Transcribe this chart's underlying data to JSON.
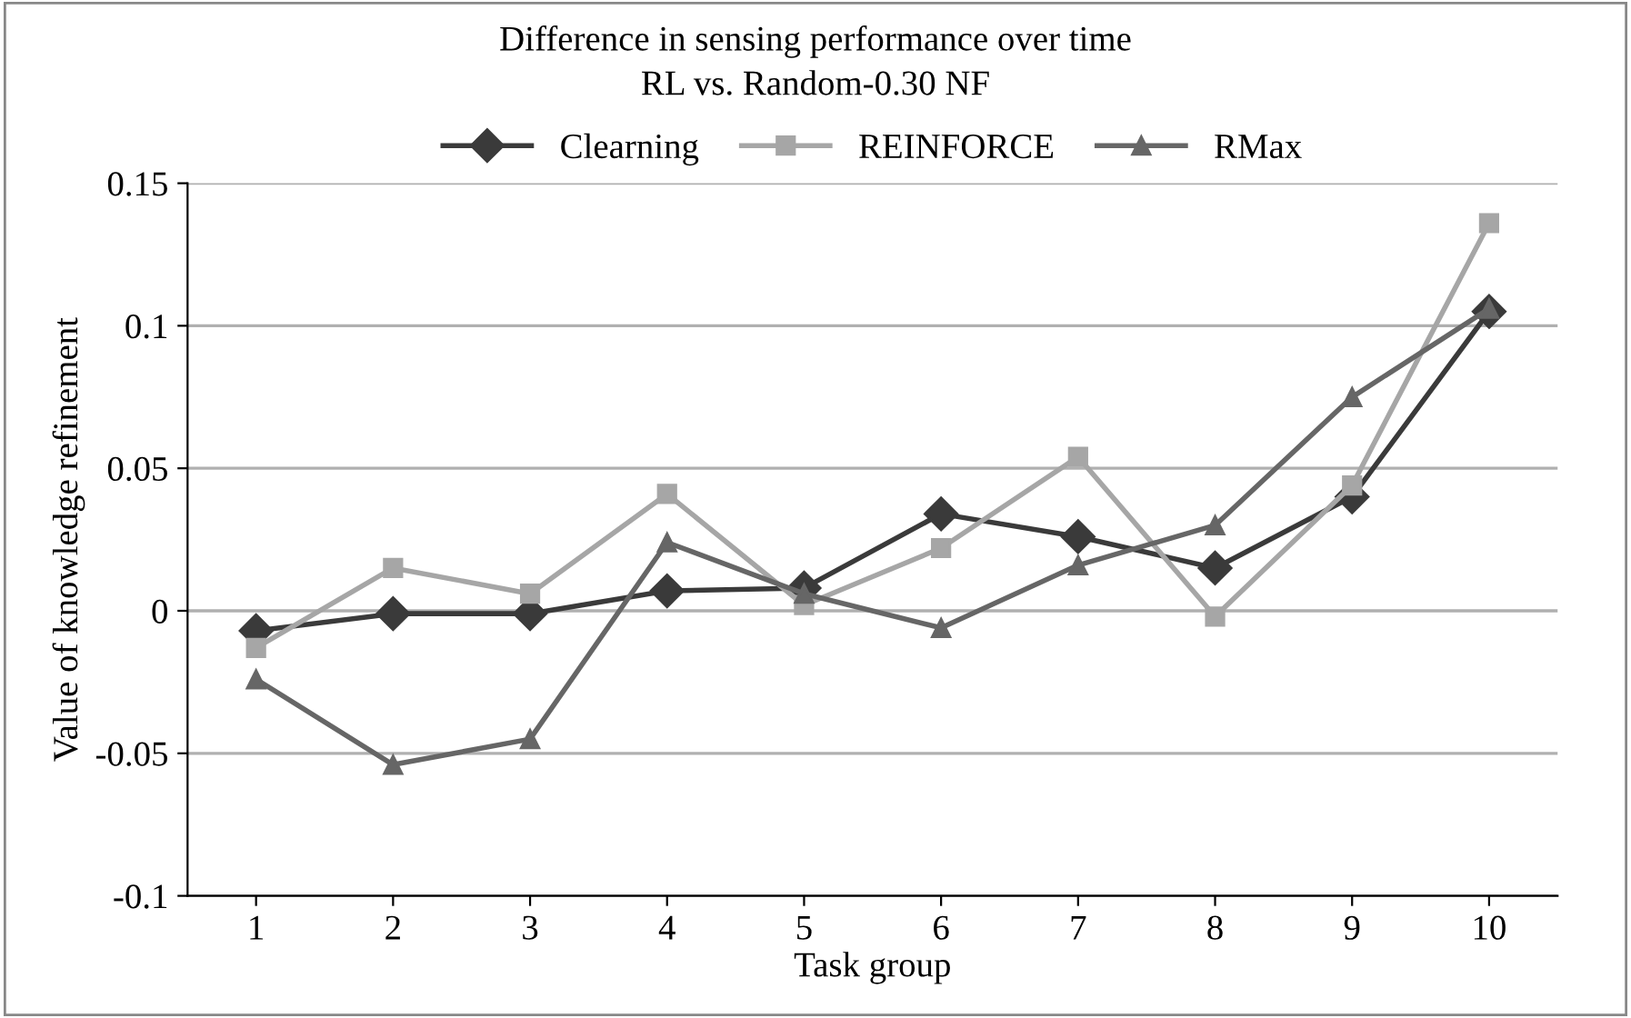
{
  "chart_data": {
    "type": "line",
    "title": "Difference in sensing performance over time\nRL vs. Random-0.30 NF",
    "xlabel": "Task group",
    "ylabel": "Value of knowledge refinement",
    "categories": [
      "1",
      "2",
      "3",
      "4",
      "5",
      "6",
      "7",
      "8",
      "9",
      "10"
    ],
    "series": [
      {
        "name": "Clearning",
        "color": "#3a3a3a",
        "marker": "diamond",
        "values": [
          -0.007,
          -0.001,
          -0.001,
          0.007,
          0.008,
          0.034,
          0.026,
          0.015,
          0.04,
          0.105
        ]
      },
      {
        "name": "REINFORCE",
        "color": "#a6a6a6",
        "marker": "square",
        "values": [
          -0.013,
          0.015,
          0.006,
          0.041,
          0.002,
          0.022,
          0.054,
          -0.002,
          0.044,
          0.136
        ]
      },
      {
        "name": "RMax",
        "color": "#666666",
        "marker": "triangle",
        "values": [
          -0.024,
          -0.054,
          -0.045,
          0.024,
          0.006,
          -0.006,
          0.016,
          0.03,
          0.075,
          0.106
        ]
      }
    ],
    "ylim": [
      -0.1,
      0.15
    ],
    "yticks": [
      -0.1,
      -0.05,
      0,
      0.05,
      0.1,
      0.15
    ],
    "grid": "y",
    "legend": "top",
    "line_style": "solid"
  }
}
